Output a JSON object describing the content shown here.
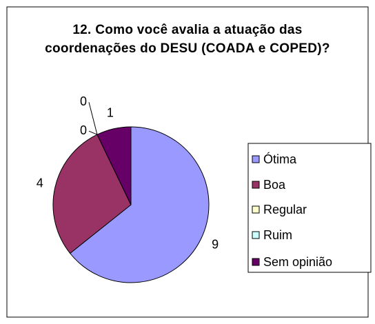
{
  "chart_data": {
    "type": "pie",
    "title": "12. Como você avalia a atuação das coordenações do DESU (COADA e COPED)?",
    "categories": [
      "Ótima",
      "Boa",
      "Regular",
      "Ruim",
      "Sem opinião"
    ],
    "values": [
      9,
      4,
      0,
      0,
      1
    ],
    "colors": [
      "#9999ff",
      "#993366",
      "#ffffcc",
      "#ccffff",
      "#660066"
    ],
    "legend": "right"
  }
}
